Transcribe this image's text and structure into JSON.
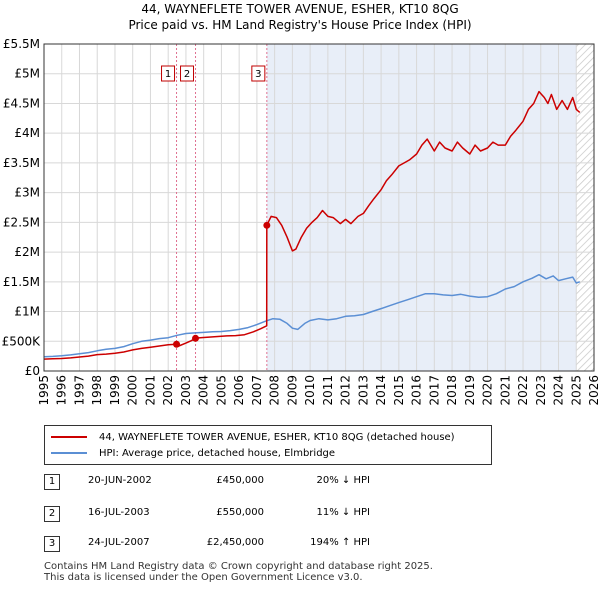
{
  "title_line1": "44, WAYNEFLETE TOWER AVENUE, ESHER, KT10 8QG",
  "title_line2": "Price paid vs. HM Land Registry's House Price Index (HPI)",
  "chart_data": {
    "type": "line",
    "xlim": [
      1995,
      2026
    ],
    "ylim": [
      0,
      5500000
    ],
    "x_ticks": [
      "1995",
      "1996",
      "1997",
      "1998",
      "1999",
      "2000",
      "2001",
      "2002",
      "2003",
      "2004",
      "2005",
      "2006",
      "2007",
      "2008",
      "2009",
      "2010",
      "2011",
      "2012",
      "2013",
      "2014",
      "2015",
      "2016",
      "2017",
      "2018",
      "2019",
      "2020",
      "2021",
      "2022",
      "2023",
      "2024",
      "2025",
      "2026"
    ],
    "y_ticks": [
      {
        "value": 0,
        "label": "£0"
      },
      {
        "value": 500000,
        "label": "£500K"
      },
      {
        "value": 1000000,
        "label": "£1M"
      },
      {
        "value": 1500000,
        "label": "£1.5M"
      },
      {
        "value": 2000000,
        "label": "£2M"
      },
      {
        "value": 2500000,
        "label": "£2.5M"
      },
      {
        "value": 3000000,
        "label": "£3M"
      },
      {
        "value": 3500000,
        "label": "£3.5M"
      },
      {
        "value": 4000000,
        "label": "£4M"
      },
      {
        "value": 4500000,
        "label": "£4.5M"
      },
      {
        "value": 5000000,
        "label": "£5M"
      },
      {
        "value": 5500000,
        "label": "£5.5M"
      }
    ],
    "shaded_from": 2007.56,
    "hatched_from": 2025.0,
    "series": [
      {
        "name": "44, WAYNEFLETE TOWER AVENUE, ESHER, KT10 8QG (detached house)",
        "color": "#cc0000",
        "x": [
          1995.0,
          1995.5,
          1996.0,
          1996.5,
          1997.0,
          1997.5,
          1998.0,
          1998.5,
          1999.0,
          1999.5,
          2000.0,
          2000.5,
          2001.0,
          2001.5,
          2002.0,
          2002.47,
          2002.6,
          2003.0,
          2003.3,
          2003.54,
          2003.8,
          2004.3,
          2004.8,
          2005.3,
          2005.8,
          2006.3,
          2006.8,
          2007.2,
          2007.55,
          2007.56,
          2007.8,
          2008.1,
          2008.4,
          2008.7,
          2009.0,
          2009.2,
          2009.5,
          2009.8,
          2010.1,
          2010.4,
          2010.7,
          2011.0,
          2011.3,
          2011.7,
          2012.0,
          2012.3,
          2012.7,
          2013.0,
          2013.3,
          2013.6,
          2014.0,
          2014.3,
          2014.6,
          2015.0,
          2015.3,
          2015.6,
          2016.0,
          2016.3,
          2016.6,
          2017.0,
          2017.3,
          2017.6,
          2018.0,
          2018.3,
          2018.6,
          2019.0,
          2019.3,
          2019.6,
          2020.0,
          2020.3,
          2020.6,
          2021.0,
          2021.3,
          2021.6,
          2022.0,
          2022.3,
          2022.6,
          2022.9,
          2023.2,
          2023.4,
          2023.6,
          2023.9,
          2024.2,
          2024.5,
          2024.8,
          2025.0,
          2025.2
        ],
        "values": [
          200000,
          205000,
          210000,
          220000,
          235000,
          250000,
          275000,
          285000,
          300000,
          320000,
          355000,
          380000,
          400000,
          420000,
          440000,
          450000,
          420000,
          470000,
          510000,
          550000,
          560000,
          570000,
          580000,
          590000,
          595000,
          610000,
          660000,
          710000,
          760000,
          2450000,
          2600000,
          2580000,
          2450000,
          2250000,
          2020000,
          2050000,
          2250000,
          2400000,
          2500000,
          2580000,
          2700000,
          2600000,
          2580000,
          2480000,
          2550000,
          2480000,
          2600000,
          2650000,
          2780000,
          2900000,
          3050000,
          3200000,
          3300000,
          3450000,
          3500000,
          3550000,
          3650000,
          3800000,
          3900000,
          3700000,
          3850000,
          3750000,
          3700000,
          3850000,
          3750000,
          3650000,
          3800000,
          3700000,
          3750000,
          3850000,
          3800000,
          3800000,
          3950000,
          4050000,
          4200000,
          4400000,
          4500000,
          4700000,
          4600000,
          4500000,
          4650000,
          4400000,
          4550000,
          4400000,
          4600000,
          4400000,
          4350000
        ]
      },
      {
        "name": "HPI: Average price, detached house, Elmbridge",
        "color": "#5b8fd4",
        "x": [
          1995.0,
          1995.5,
          1996.0,
          1996.5,
          1997.0,
          1997.5,
          1998.0,
          1998.5,
          1999.0,
          1999.5,
          2000.0,
          2000.5,
          2001.0,
          2001.5,
          2002.0,
          2002.5,
          2003.0,
          2003.5,
          2004.0,
          2004.5,
          2005.0,
          2005.5,
          2006.0,
          2006.5,
          2007.0,
          2007.5,
          2007.9,
          2008.3,
          2008.7,
          2009.0,
          2009.3,
          2009.7,
          2010.0,
          2010.5,
          2011.0,
          2011.5,
          2012.0,
          2012.5,
          2013.0,
          2013.5,
          2014.0,
          2014.5,
          2015.0,
          2015.5,
          2016.0,
          2016.5,
          2017.0,
          2017.5,
          2018.0,
          2018.5,
          2019.0,
          2019.5,
          2020.0,
          2020.5,
          2021.0,
          2021.5,
          2022.0,
          2022.5,
          2022.9,
          2023.3,
          2023.7,
          2024.0,
          2024.4,
          2024.8,
          2025.0,
          2025.2
        ],
        "values": [
          240000,
          245000,
          255000,
          270000,
          290000,
          310000,
          340000,
          365000,
          380000,
          410000,
          460000,
          500000,
          520000,
          545000,
          560000,
          600000,
          630000,
          640000,
          650000,
          660000,
          665000,
          680000,
          700000,
          730000,
          780000,
          840000,
          880000,
          870000,
          800000,
          720000,
          700000,
          800000,
          850000,
          880000,
          860000,
          880000,
          920000,
          930000,
          950000,
          1000000,
          1050000,
          1100000,
          1150000,
          1200000,
          1250000,
          1300000,
          1300000,
          1280000,
          1270000,
          1290000,
          1260000,
          1240000,
          1250000,
          1300000,
          1380000,
          1420000,
          1500000,
          1560000,
          1620000,
          1550000,
          1600000,
          1520000,
          1550000,
          1580000,
          1480000,
          1500000
        ]
      }
    ],
    "transactions": [
      {
        "label": "1",
        "x": 2002.47,
        "value": 450000,
        "date": "20-JUN-2002",
        "price": "£450,000",
        "hpi": "20% ↓ HPI"
      },
      {
        "label": "2",
        "x": 2003.54,
        "value": 550000,
        "date": "16-JUL-2003",
        "price": "£550,000",
        "hpi": "11% ↓ HPI"
      },
      {
        "label": "3",
        "x": 2007.56,
        "value": 2450000,
        "date": "24-JUL-2007",
        "price": "£2,450,000",
        "hpi": "194% ↑ HPI"
      }
    ]
  },
  "legend": {
    "items": [
      {
        "label": "44, WAYNEFLETE TOWER AVENUE, ESHER, KT10 8QG (detached house)",
        "color": "#cc0000"
      },
      {
        "label": "HPI: Average price, detached house, Elmbridge",
        "color": "#5b8fd4"
      }
    ]
  },
  "footer": {
    "line1": "Contains HM Land Registry data © Crown copyright and database right 2025.",
    "line2": "This data is licensed under the Open Government Licence v3.0."
  }
}
